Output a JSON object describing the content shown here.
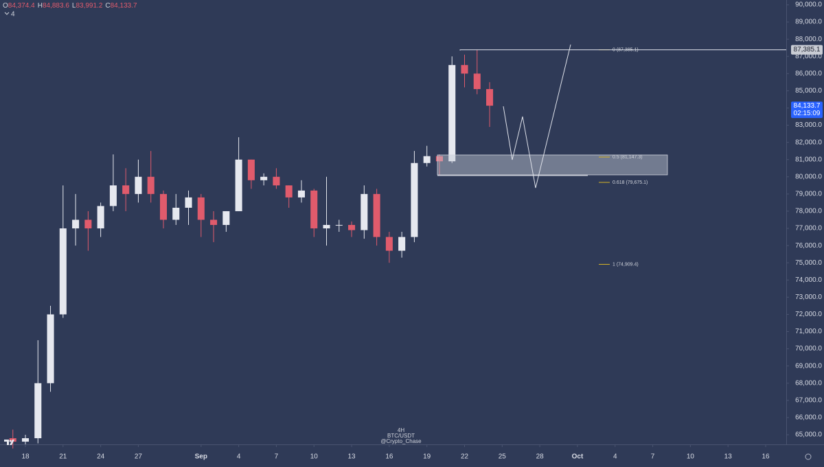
{
  "chart_data": {
    "type": "candlestick",
    "x": [
      -1,
      0,
      1,
      2,
      3,
      4,
      5,
      6,
      7,
      8,
      9,
      10,
      11,
      12,
      13,
      14,
      15,
      16,
      17,
      18,
      19,
      20,
      21,
      22,
      23,
      24,
      25,
      26,
      27,
      28,
      29,
      30,
      31,
      32,
      33,
      34,
      35,
      36,
      37
    ],
    "open": [
      64800,
      64600,
      64800,
      68000,
      72000,
      77000,
      77500,
      77000,
      78300,
      79500,
      79000,
      80000,
      79000,
      77500,
      78200,
      78800,
      77500,
      77200,
      78000,
      81000,
      79800,
      80000,
      79500,
      78800,
      79200,
      77000,
      77200,
      77200,
      76900,
      79000,
      76500,
      75700,
      76500,
      80800,
      81200,
      80900,
      86500,
      86000,
      85100
    ],
    "high": [
      65300,
      65000,
      70500,
      72500,
      79500,
      79000,
      78000,
      78500,
      81300,
      80500,
      81000,
      81500,
      79200,
      79000,
      79200,
      79000,
      78000,
      78000,
      82300,
      81000,
      80200,
      80500,
      79500,
      79800,
      79300,
      80000,
      77500,
      77400,
      79500,
      79300,
      76800,
      76800,
      81500,
      81800,
      81300,
      87000,
      87100,
      87385,
      85500
    ],
    "low": [
      64200,
      64300,
      64500,
      67500,
      71800,
      76000,
      75700,
      76500,
      78000,
      78000,
      78500,
      78500,
      77000,
      77200,
      77200,
      76500,
      76200,
      76800,
      78000,
      79300,
      79500,
      79300,
      78200,
      78500,
      76500,
      76000,
      76800,
      76500,
      76400,
      76000,
      75000,
      75300,
      76200,
      80600,
      80100,
      80800,
      85200,
      84800,
      82900
    ],
    "close": [
      64600,
      64800,
      68000,
      72000,
      77000,
      77500,
      77000,
      78300,
      79500,
      79000,
      80000,
      79000,
      77500,
      78200,
      78800,
      77500,
      77200,
      78000,
      81000,
      79800,
      80000,
      79500,
      78800,
      79200,
      77000,
      77200,
      77200,
      76900,
      79000,
      76500,
      75700,
      76500,
      80800,
      81200,
      80900,
      86500,
      86000,
      85100,
      84133.7
    ],
    "up_color": "#e6e8ef",
    "down_color": "#e05b6c",
    "xlim": [
      -2.025,
      60.64
    ],
    "xticks": [
      {
        "value": 0,
        "label": "18"
      },
      {
        "value": 3,
        "label": "21"
      },
      {
        "value": 6,
        "label": "24"
      },
      {
        "value": 9,
        "label": "27"
      },
      {
        "value": 14,
        "label": "Sep"
      },
      {
        "value": 17,
        "label": "4"
      },
      {
        "value": 20,
        "label": "7"
      },
      {
        "value": 23,
        "label": "10"
      },
      {
        "value": 26,
        "label": "13"
      },
      {
        "value": 29,
        "label": "16"
      },
      {
        "value": 32,
        "label": "19"
      },
      {
        "value": 35,
        "label": "22"
      },
      {
        "value": 38,
        "label": "25"
      },
      {
        "value": 41,
        "label": "28"
      },
      {
        "value": 44,
        "label": "Oct"
      },
      {
        "value": 47,
        "label": "4"
      },
      {
        "value": 50,
        "label": "7"
      },
      {
        "value": 53,
        "label": "10"
      },
      {
        "value": 56,
        "label": "13"
      },
      {
        "value": 59,
        "label": "16"
      }
    ],
    "ylim": [
      64442,
      90279
    ],
    "yticks": [
      {
        "value": 65000,
        "label": "65,000.0"
      },
      {
        "value": 66000,
        "label": "66,000.0"
      },
      {
        "value": 67000,
        "label": "67,000.0"
      },
      {
        "value": 68000,
        "label": "68,000.0"
      },
      {
        "value": 69000,
        "label": "69,000.0"
      },
      {
        "value": 70000,
        "label": "70,000.0"
      },
      {
        "value": 71000,
        "label": "71,000.0"
      },
      {
        "value": 72000,
        "label": "72,000.0"
      },
      {
        "value": 73000,
        "label": "73,000.0"
      },
      {
        "value": 74000,
        "label": "74,000.0"
      },
      {
        "value": 75000,
        "label": "75,000.0"
      },
      {
        "value": 76000,
        "label": "76,000.0"
      },
      {
        "value": 77000,
        "label": "77,000.0"
      },
      {
        "value": 78000,
        "label": "78,000.0"
      },
      {
        "value": 79000,
        "label": "79,000.0"
      },
      {
        "value": 80000,
        "label": "80,000.0"
      },
      {
        "value": 81000,
        "label": "81,000.0"
      },
      {
        "value": 82000,
        "label": "82,000.0"
      },
      {
        "value": 83000,
        "label": "83,000.0"
      },
      {
        "value": 84000,
        "label": "84,000.0"
      },
      {
        "value": 85000,
        "label": "85,000.0"
      },
      {
        "value": 86000,
        "label": "86,000.0"
      },
      {
        "value": 87000,
        "label": "87,000.0"
      },
      {
        "value": 88000,
        "label": "88,000.0"
      },
      {
        "value": 89000,
        "label": "89,000.0"
      },
      {
        "value": 90000,
        "label": "90,000.0"
      }
    ],
    "fib_levels": [
      {
        "value": 87385.1,
        "label": "0 (87,385.1)"
      },
      {
        "value": 81147.3,
        "label": "0.5 (81,147.3)"
      },
      {
        "value": 79675.1,
        "label": "0.618 (79,675.1)"
      },
      {
        "value": 74909.4,
        "label": "1 (74,909.4)"
      }
    ],
    "fib_color": "#d9b526",
    "level_tag": {
      "value": 87385.1,
      "label": "87,385.1"
    },
    "last_price": {
      "value": 84133.7,
      "label": "84,133.7",
      "countdown": "02:15:09"
    }
  },
  "ohlc": [
    {
      "key": "O",
      "value": "84,374.4"
    },
    {
      "key": "H",
      "value": "84,883.6"
    },
    {
      "key": "L",
      "value": "83,991.2"
    },
    {
      "key": "C",
      "value": "84,133.7"
    }
  ],
  "indicator_count": "4",
  "watermark": {
    "interval": "4H",
    "symbol": "BTC/USDT",
    "author": "@Crypto_Chase"
  }
}
